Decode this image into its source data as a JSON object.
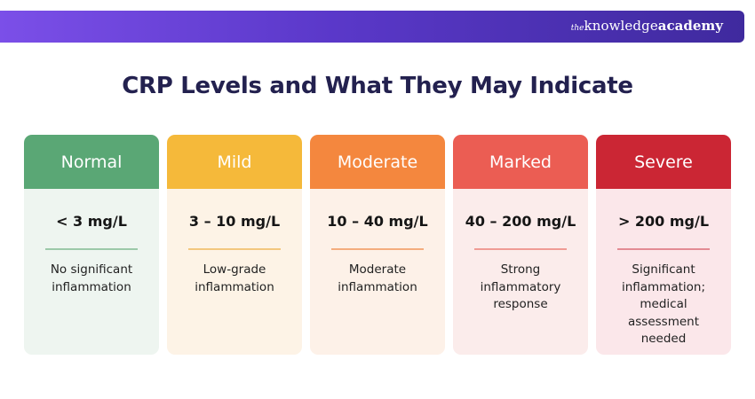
{
  "brand": {
    "prefix": "the",
    "name": "knowledge",
    "suffix": "academy"
  },
  "title": "CRP Levels and What They May Indicate",
  "levels": [
    {
      "label": "Normal",
      "range": "< 3 mg/L",
      "description": "No significant inflammation",
      "header_color": "#5aa775",
      "body_color": "#eef5f0",
      "divider_color": "#9cc9a9"
    },
    {
      "label": "Mild",
      "range": "3 – 10 mg/L",
      "description": "Low-grade inflammation",
      "header_color": "#f5b93a",
      "body_color": "#fdf3e6",
      "divider_color": "#f3c77e"
    },
    {
      "label": "Moderate",
      "range": "10 – 40 mg/L",
      "description": "Moderate inflammation",
      "header_color": "#f4873e",
      "body_color": "#fdf1e8",
      "divider_color": "#f4ad7e"
    },
    {
      "label": "Marked",
      "range": "40 – 200 mg/L",
      "description": "Strong inflammatory response",
      "header_color": "#eb5d53",
      "body_color": "#fbeceb",
      "divider_color": "#ef9b95"
    },
    {
      "label": "Severe",
      "range": "> 200 mg/L",
      "description": "Significant inflammation; medical assessment needed",
      "header_color": "#cb2634",
      "body_color": "#fbe7ea",
      "divider_color": "#e38b94"
    }
  ]
}
